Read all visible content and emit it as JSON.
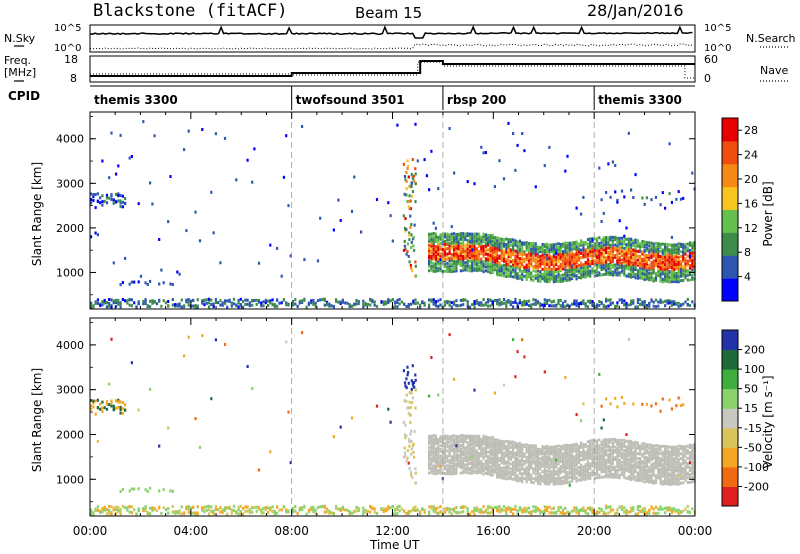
{
  "header": {
    "station": "Blackstone (fitACF)",
    "beam": "Beam 15",
    "date": "28/Jan/2016"
  },
  "top_panels": {
    "nsky_label": "N.Sky",
    "nsky_ticks": [
      "10^5",
      "10^0"
    ],
    "nsearch_label": "N.Search",
    "nsearch_ticks": [
      "10^5",
      "10^0"
    ],
    "freq_label": "Freq.",
    "freq_unit": "[MHz]",
    "freq_ticks": [
      "18",
      "8"
    ],
    "nave_label": "Nave",
    "nave_ticks": [
      "60",
      "0"
    ],
    "cpid_label": "CPID",
    "cpid_segments": [
      {
        "label": "themis 3300",
        "start": 0,
        "end": 8
      },
      {
        "label": "twofsound 3501",
        "start": 8,
        "end": 14
      },
      {
        "label": "rbsp 200",
        "start": 14,
        "end": 20
      },
      {
        "label": "themis 3300",
        "start": 20,
        "end": 24
      }
    ]
  },
  "colors": {
    "power_scale": [
      "#0000ff",
      "#2d56b0",
      "#3e8c4a",
      "#63c04f",
      "#f7c520",
      "#f58a15",
      "#ef4c10",
      "#e60000"
    ],
    "velocity_scale": [
      "#2233aa",
      "#1f6a3a",
      "#3fae3f",
      "#8ad36c",
      "#c8c8c0",
      "#d8c45a",
      "#f5a623",
      "#ef6a10",
      "#e02020"
    ],
    "ground_scatter": "#bdbdb5"
  },
  "chart_data": [
    {
      "type": "heatmap",
      "title": "",
      "xlabel": "Time UT",
      "ylabel": "Slant Range [km]",
      "x_ticks": [
        "00:00",
        "04:00",
        "08:00",
        "12:00",
        "16:00",
        "20:00",
        "00:00"
      ],
      "x_range_hours": [
        0,
        24
      ],
      "y_ticks": [
        "1000",
        "2000",
        "3000",
        "4000"
      ],
      "y_range": [
        180,
        4600
      ],
      "colorbar_label": "Power [dB]",
      "colorbar_ticks": [
        "4",
        "8",
        "12",
        "16",
        "20",
        "24",
        "28"
      ],
      "colorbar_range": [
        0,
        30
      ],
      "features": [
        {
          "desc": "strong band",
          "t0": 13.5,
          "t1": 24,
          "range_center_km": 1350,
          "level_dB": 22
        },
        {
          "desc": "patch",
          "t0": 0.2,
          "t1": 1.5,
          "range_center_km": 2600,
          "level_dB": 6
        },
        {
          "desc": "near-range echoes",
          "t0": 0,
          "t1": 24,
          "range_center_km": 260,
          "level_dB": 6
        }
      ]
    },
    {
      "type": "heatmap",
      "title": "",
      "xlabel": "Time UT",
      "ylabel": "Slant Range [km]",
      "x_ticks": [
        "00:00",
        "04:00",
        "08:00",
        "12:00",
        "16:00",
        "20:00",
        "00:00"
      ],
      "x_range_hours": [
        0,
        24
      ],
      "y_ticks": [
        "1000",
        "2000",
        "3000",
        "4000"
      ],
      "y_range": [
        180,
        4600
      ],
      "colorbar_label": "Velocity [m s⁻¹]",
      "colorbar_ticks": [
        "200",
        "100",
        "50",
        "15",
        "-15",
        "-50",
        "-100",
        "-200"
      ],
      "colorbar_range": [
        -250,
        250
      ],
      "features": [
        {
          "desc": "ground scatter band",
          "t0": 13.5,
          "t1": 24,
          "range_center_km": 1450,
          "velocity_ms": 0
        },
        {
          "desc": "positive patch",
          "t0": 12.5,
          "t1": 12.9,
          "range_center_km": 3300,
          "velocity_ms": 220
        }
      ]
    }
  ]
}
